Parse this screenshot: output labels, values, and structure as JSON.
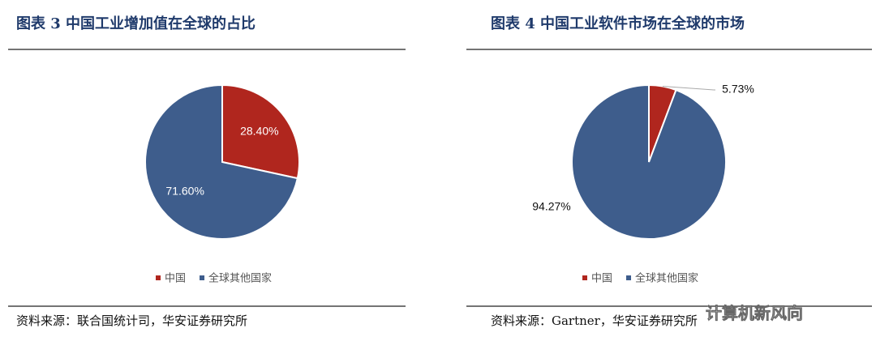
{
  "chart_data": [
    {
      "type": "pie",
      "title": "图表 3 中国工业增加值在全球的占比",
      "categories": [
        "中国",
        "全球其他国家"
      ],
      "values": [
        28.4,
        71.6
      ],
      "value_labels": [
        "28.40%",
        "71.60%"
      ],
      "colors": [
        "#b0261e",
        "#3e5d8c"
      ],
      "label_position": "inside",
      "legend": "bottom",
      "source": "资料来源：联合国统计司，华安证券研究所"
    },
    {
      "type": "pie",
      "title": "图表 4 中国工业软件市场在全球的市场",
      "categories": [
        "中国",
        "全球其他国家"
      ],
      "values": [
        5.73,
        94.27
      ],
      "value_labels": [
        "5.73%",
        "94.27%"
      ],
      "colors": [
        "#b0261e",
        "#3e5d8c"
      ],
      "label_position": "outside",
      "legend": "bottom",
      "source": "资料来源：Gartner，华安证券研究所"
    }
  ],
  "watermark": "计算机新风向"
}
